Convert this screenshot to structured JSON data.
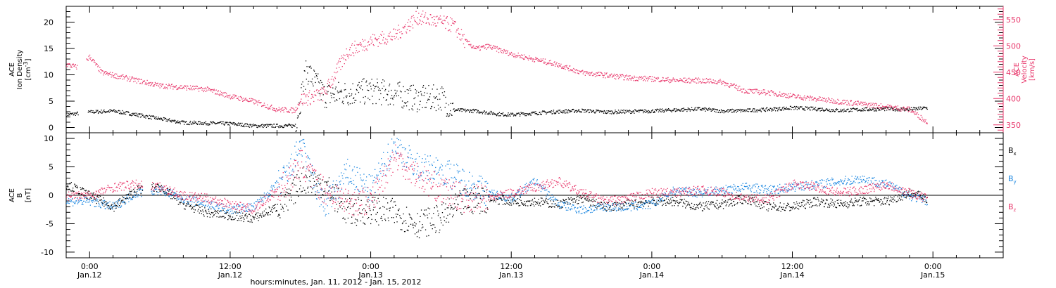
{
  "colors": {
    "black": "#000000",
    "pink": "#e8386c",
    "blue": "#1a86e0"
  },
  "xaxis": {
    "label": "hours:minutes, Jan. 11, 2012 - Jan. 15, 2012",
    "ticks": [
      {
        "hour": 0,
        "time": "0:00",
        "date": "Jan.12"
      },
      {
        "hour": 12,
        "time": "12:00",
        "date": "Jan.12"
      },
      {
        "hour": 24,
        "time": "0:00",
        "date": "Jan.13"
      },
      {
        "hour": 36,
        "time": "12:00",
        "date": "Jan.13"
      },
      {
        "hour": 48,
        "time": "0:00",
        "date": "Jan.14"
      },
      {
        "hour": 60,
        "time": "12:00",
        "date": "Jan.14"
      },
      {
        "hour": 72,
        "time": "0:00",
        "date": "Jan.15"
      }
    ]
  },
  "chart_data": [
    {
      "type": "line",
      "panel": "plasma",
      "xlim": [
        -2.0,
        78.0
      ],
      "left_axis": {
        "label_lines": [
          "ACE",
          "Ion Density"
        ],
        "unit": "[cm",
        "unit_sup": "-3",
        "unit_end": "]",
        "ylim": [
          -1,
          23
        ],
        "ticks": [
          0,
          5,
          10,
          15,
          20
        ]
      },
      "right_axis": {
        "label_lines": [
          "ACE",
          "Velocity"
        ],
        "unit": "[km/s]",
        "ylim": [
          335,
          575
        ],
        "ticks": [
          350,
          400,
          450,
          500,
          550
        ]
      },
      "series": [
        {
          "axis": "left",
          "color": "black",
          "x": [
            -2,
            0,
            2,
            4,
            6,
            8,
            10,
            12,
            14,
            17.5,
            18.5,
            20,
            22,
            24,
            26,
            28,
            30,
            31,
            33,
            35,
            36,
            38,
            40,
            42,
            44,
            46,
            48,
            50,
            52,
            54,
            56,
            58,
            60,
            62,
            64,
            66,
            68,
            70,
            71.5
          ],
          "y": [
            2.5,
            3.0,
            3.2,
            2.5,
            1.7,
            1.0,
            0.9,
            0.8,
            0.4,
            0.4,
            11.0,
            6.2,
            6.6,
            7.0,
            6.5,
            5.5,
            5.8,
            3.4,
            3.2,
            2.6,
            2.5,
            2.8,
            3.1,
            3.3,
            3.0,
            3.1,
            3.2,
            3.4,
            3.6,
            3.2,
            3.3,
            3.5,
            3.8,
            3.6,
            3.3,
            3.5,
            3.6,
            3.5,
            3.8
          ]
        },
        {
          "axis": "right",
          "color": "pink",
          "x": [
            -2,
            -1,
            0,
            1,
            2,
            4,
            6,
            8,
            10,
            12,
            14,
            16,
            17.5,
            18,
            20,
            22,
            24,
            26,
            28,
            30,
            31,
            32,
            33,
            34,
            36,
            38,
            40,
            42,
            44,
            46,
            48,
            50,
            52,
            54,
            56,
            58,
            60,
            62,
            64,
            66,
            68,
            70,
            71.5
          ],
          "y": [
            465,
            460,
            480,
            450,
            445,
            435,
            425,
            422,
            418,
            405,
            395,
            380,
            378,
            398,
            410,
            490,
            510,
            520,
            555,
            545,
            540,
            510,
            495,
            500,
            485,
            475,
            465,
            450,
            445,
            440,
            438,
            435,
            435,
            432,
            415,
            412,
            405,
            400,
            395,
            390,
            385,
            380,
            355
          ]
        }
      ]
    },
    {
      "type": "line",
      "panel": "magnetic field",
      "xlim": [
        -2.0,
        78.0
      ],
      "left_axis": {
        "label_lines": [
          "ACE",
          "B"
        ],
        "unit": "[nT]",
        "ylim": [
          -11,
          11
        ],
        "ticks": [
          -10,
          -5,
          0,
          5,
          10
        ]
      },
      "zero_line": true,
      "series": [
        {
          "name": "B",
          "name_sub": "x",
          "color": "black",
          "x": [
            -2,
            0,
            2,
            4,
            6,
            8,
            10,
            12,
            14,
            16,
            17,
            18,
            20,
            22,
            24,
            26,
            28,
            30,
            32,
            34,
            36,
            38,
            40,
            42,
            44,
            46,
            48,
            50,
            52,
            54,
            56,
            58,
            60,
            62,
            64,
            66,
            68,
            70,
            71.5
          ],
          "y": [
            2.0,
            0.0,
            -2.0,
            1.0,
            1.5,
            -1.5,
            -3.0,
            -3.5,
            -4.0,
            -2.0,
            -1.0,
            3.0,
            2.0,
            -3.0,
            -2.5,
            -3.0,
            -5.0,
            -4.0,
            -1.0,
            -0.5,
            -1.0,
            -1.0,
            -1.5,
            -0.5,
            -2.0,
            -1.5,
            -1.0,
            -1.0,
            -2.0,
            -1.5,
            -0.5,
            -2.0,
            -2.0,
            -1.0,
            -1.5,
            -1.0,
            -1.0,
            0.5,
            -0.5
          ]
        },
        {
          "name": "B",
          "name_sub": "y",
          "color": "blue",
          "x": [
            -2,
            0,
            2,
            4,
            6,
            8,
            10,
            12,
            14,
            16,
            17,
            18,
            19,
            20,
            22,
            24,
            26,
            28,
            30,
            32,
            34,
            36,
            38,
            40,
            42,
            44,
            46,
            48,
            50,
            52,
            54,
            56,
            58,
            60,
            62,
            64,
            66,
            68,
            70,
            71.5
          ],
          "y": [
            -1.0,
            -1.0,
            -2.0,
            0.5,
            1.0,
            -0.5,
            -1.5,
            -2.5,
            -2.0,
            2.0,
            4.0,
            9.0,
            3.0,
            -2.0,
            4.0,
            1.0,
            9.0,
            5.0,
            4.5,
            2.5,
            0.5,
            -0.5,
            2.5,
            -1.5,
            -2.5,
            -2.0,
            -2.0,
            -1.5,
            1.0,
            0.5,
            1.0,
            1.5,
            1.0,
            1.5,
            2.0,
            2.5,
            3.0,
            2.0,
            0.0,
            -1.0
          ]
        },
        {
          "name": "B",
          "name_sub": "z",
          "color": "pink",
          "x": [
            -2,
            0,
            2,
            4,
            6,
            8,
            10,
            12,
            14,
            16,
            17,
            18,
            19,
            20,
            22,
            24,
            26,
            28,
            30,
            32,
            34,
            36,
            38,
            40,
            42,
            44,
            46,
            48,
            50,
            52,
            54,
            56,
            58,
            60,
            62,
            64,
            66,
            68,
            70,
            71.5
          ],
          "y": [
            0.0,
            0.0,
            1.5,
            2.0,
            1.5,
            0.0,
            -0.5,
            -1.5,
            -2.5,
            1.0,
            2.5,
            6.0,
            3.0,
            1.0,
            -1.0,
            -1.0,
            7.0,
            3.5,
            1.0,
            -0.5,
            -0.5,
            0.5,
            1.5,
            2.5,
            0.5,
            -1.0,
            -0.5,
            0.5,
            0.5,
            1.0,
            0.5,
            -0.5,
            -0.5,
            2.0,
            1.5,
            0.5,
            1.0,
            2.0,
            0.5,
            -0.5
          ]
        }
      ]
    }
  ]
}
